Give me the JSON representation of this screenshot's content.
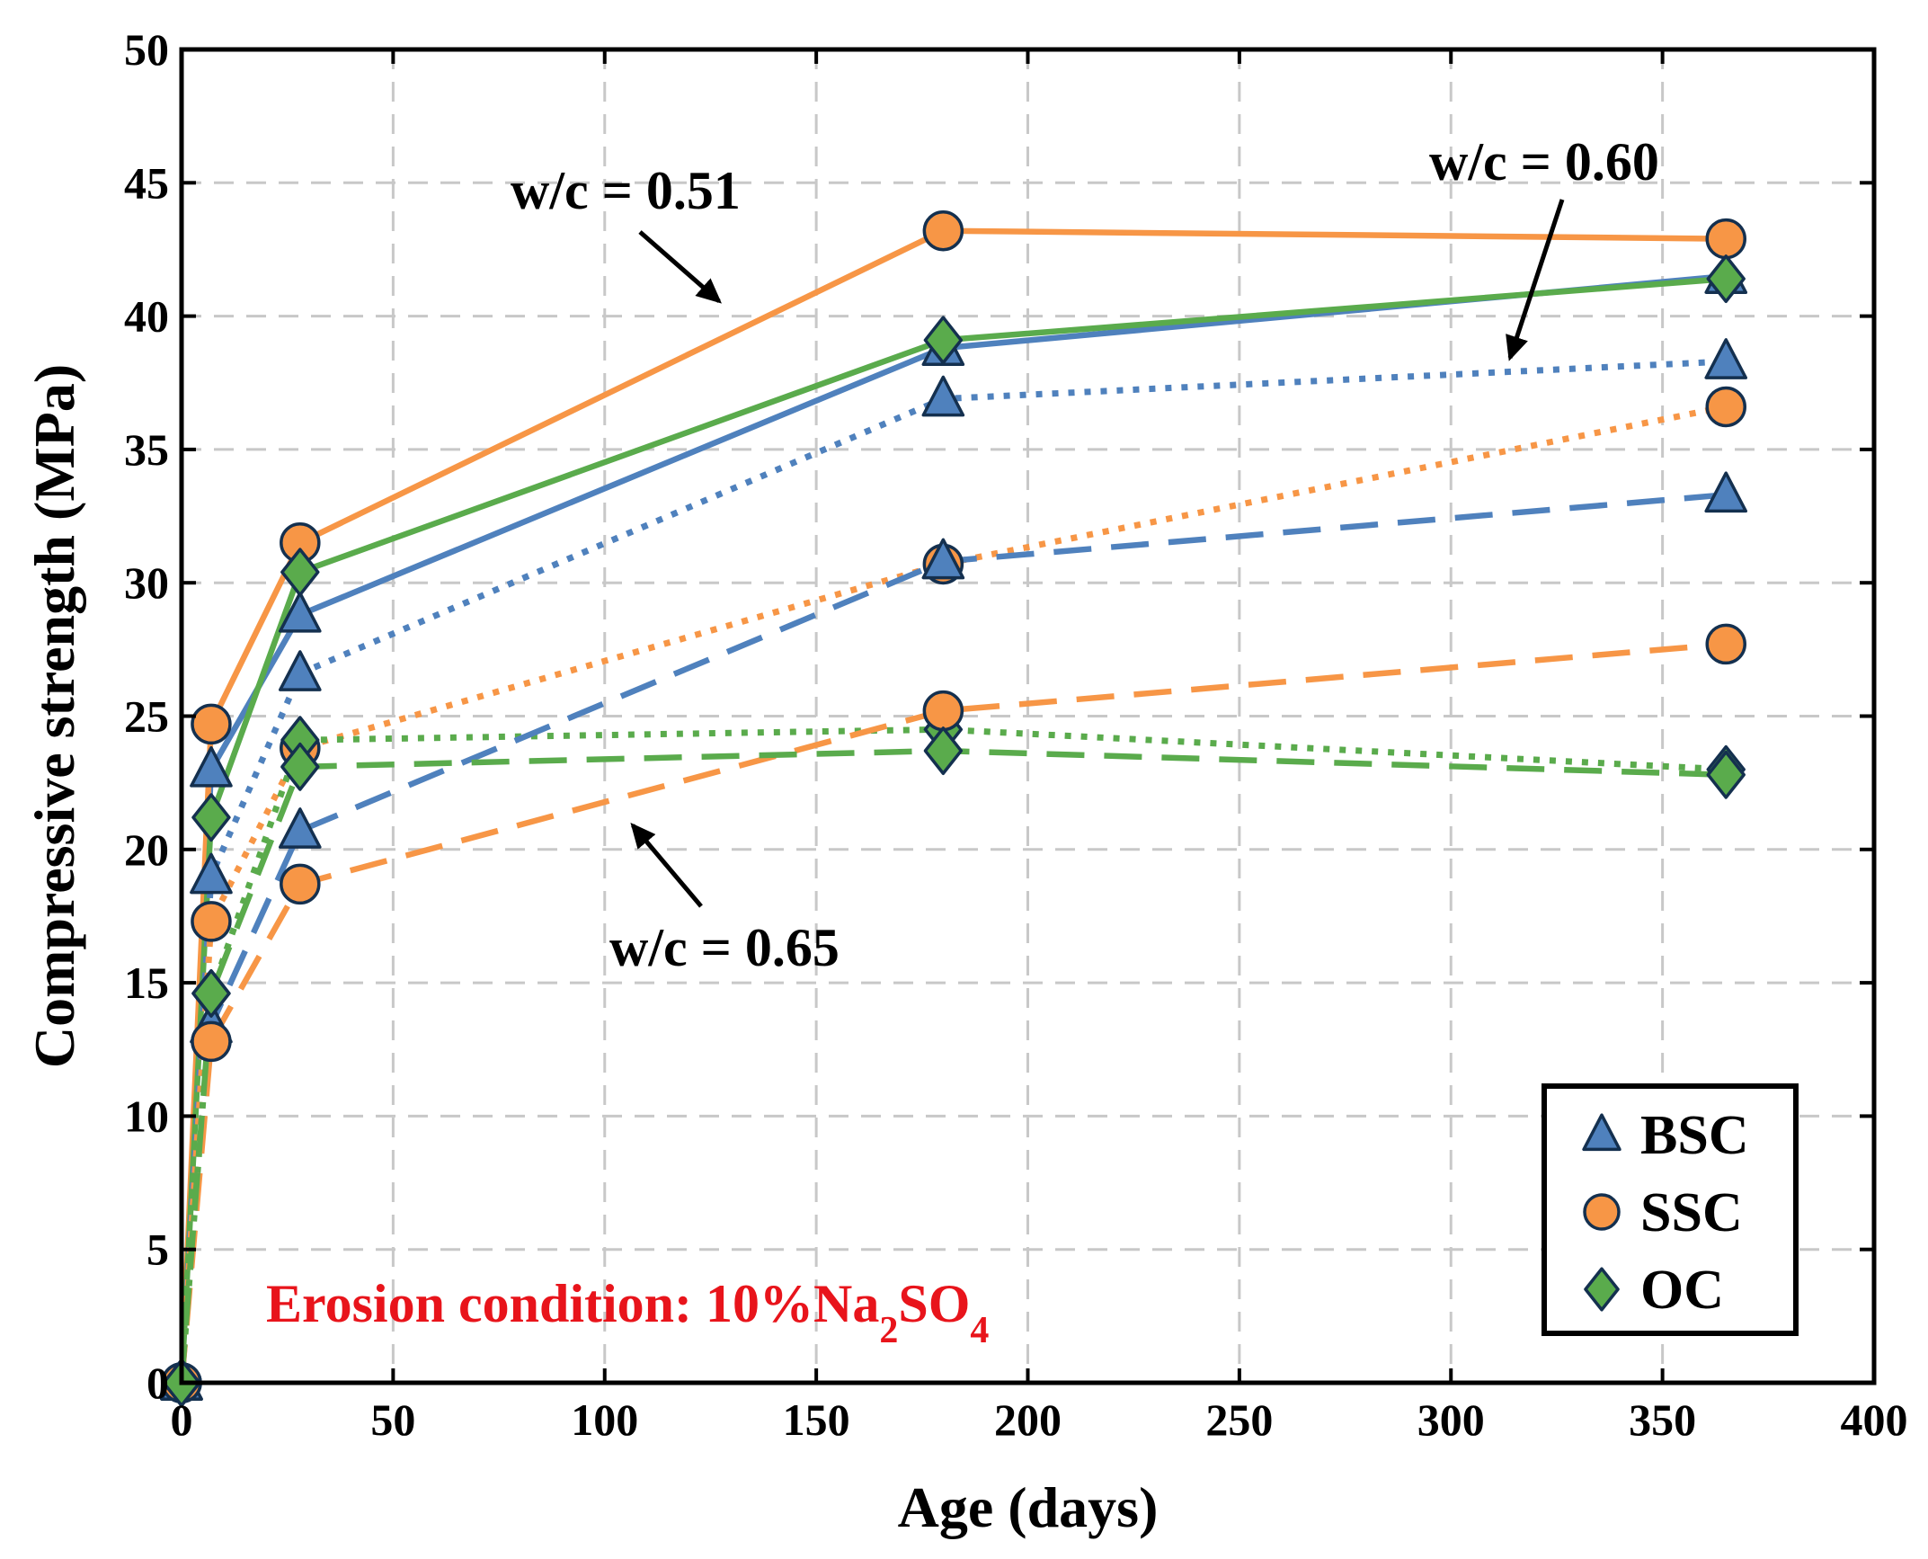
{
  "chart_data": {
    "type": "line",
    "xlabel": "Age (days)",
    "ylabel": "Compressive strength (MPa)",
    "xlim": [
      0,
      400
    ],
    "ylim": [
      0,
      50
    ],
    "xticks": [
      0,
      50,
      100,
      150,
      200,
      250,
      300,
      350,
      400
    ],
    "yticks": [
      0,
      5,
      10,
      15,
      20,
      25,
      30,
      35,
      40,
      45,
      50
    ],
    "grid": true,
    "legend_position": "bottom-right",
    "x": [
      0,
      7,
      28,
      180,
      365
    ],
    "colors": {
      "BSC": "#4f81bd",
      "SSC": "#f79646",
      "OC": "#5aab4c"
    },
    "series": [
      {
        "name": "BSC",
        "wc": "0.51",
        "style": "solid",
        "marker": "triangle",
        "values": [
          0,
          23.0,
          28.8,
          38.8,
          41.5
        ]
      },
      {
        "name": "SSC",
        "wc": "0.51",
        "style": "solid",
        "marker": "circle",
        "values": [
          0,
          24.7,
          31.5,
          43.2,
          42.9
        ]
      },
      {
        "name": "OC",
        "wc": "0.51",
        "style": "solid",
        "marker": "diamond",
        "values": [
          0,
          21.2,
          30.4,
          39.1,
          41.4
        ]
      },
      {
        "name": "BSC",
        "wc": "0.60",
        "style": "dotted",
        "marker": "triangle",
        "values": [
          0,
          19.0,
          26.6,
          36.9,
          38.3
        ]
      },
      {
        "name": "SSC",
        "wc": "0.60",
        "style": "dotted",
        "marker": "circle",
        "values": [
          0,
          17.3,
          23.8,
          30.7,
          36.6
        ]
      },
      {
        "name": "OC",
        "wc": "0.60",
        "style": "dotted",
        "marker": "diamond",
        "values": [
          0,
          14.6,
          24.1,
          24.5,
          23.0
        ]
      },
      {
        "name": "BSC",
        "wc": "0.65",
        "style": "dashed",
        "marker": "triangle",
        "values": [
          0,
          13.4,
          20.7,
          30.8,
          33.3
        ]
      },
      {
        "name": "SSC",
        "wc": "0.65",
        "style": "dashed",
        "marker": "circle",
        "values": [
          0,
          12.8,
          18.7,
          25.2,
          27.7
        ]
      },
      {
        "name": "OC",
        "wc": "0.65",
        "style": "dashed",
        "marker": "diamond",
        "values": [
          0,
          14.6,
          23.1,
          23.7,
          22.8
        ]
      }
    ],
    "annotations": [
      {
        "text": "w/c = 0.51",
        "x": 28,
        "y": 42,
        "arrow_to": [
          127,
          40.4
        ]
      },
      {
        "text": "w/c = 0.60",
        "x": 318,
        "y": 45,
        "arrow_to": [
          313,
          38.5
        ]
      },
      {
        "text": "w/c = 0.65",
        "x": 130,
        "y": 16,
        "arrow_to": [
          105,
          20.5
        ]
      }
    ],
    "condition_text": {
      "prefix": "Erosion condition: 10%Na",
      "sub1": "2",
      "mid": "SO",
      "sub2": "4"
    },
    "condition_color": "#e8141b",
    "legend": [
      {
        "label": "BSC",
        "marker": "triangle",
        "color": "#4f81bd"
      },
      {
        "label": "SSC",
        "marker": "circle",
        "color": "#f79646"
      },
      {
        "label": "OC",
        "marker": "diamond",
        "color": "#5aab4c"
      }
    ]
  }
}
